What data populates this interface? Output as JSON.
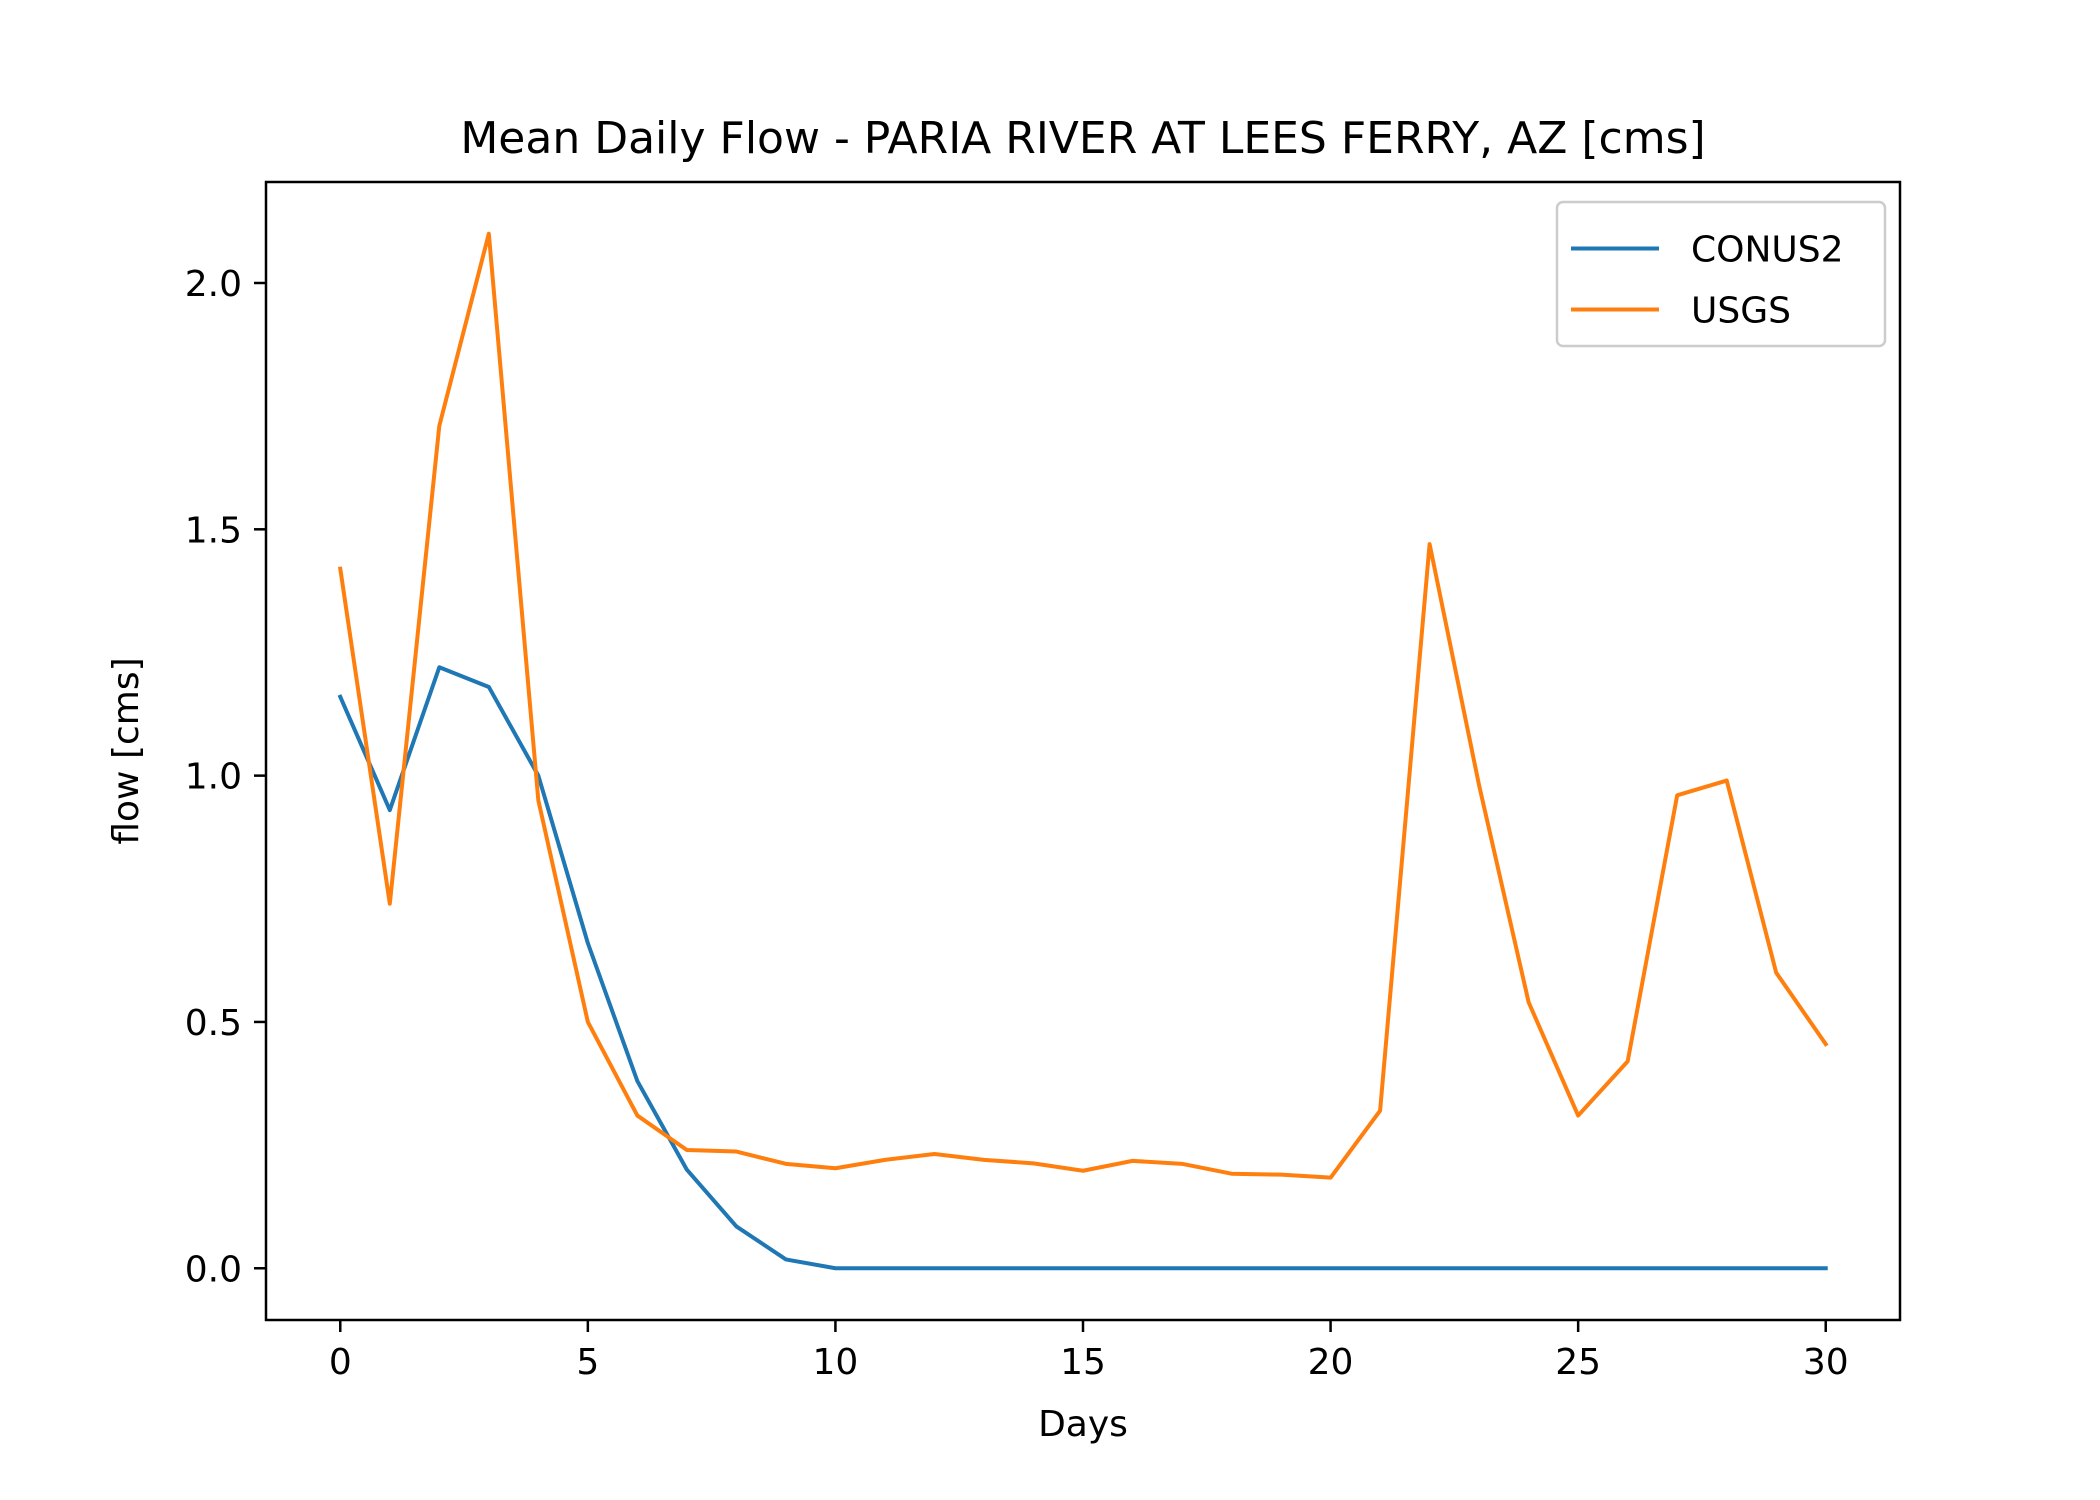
{
  "chart_data": {
    "type": "line",
    "title": "Mean Daily Flow - PARIA RIVER AT LEES FERRY, AZ [cms]",
    "xlabel": "Days",
    "ylabel": "flow [cms]",
    "xlim": [
      -1.5,
      31.5
    ],
    "ylim": [
      -0.105,
      2.205
    ],
    "xticks": [
      0,
      5,
      10,
      15,
      20,
      25,
      30
    ],
    "xtick_labels": [
      "0",
      "5",
      "10",
      "15",
      "20",
      "25",
      "30"
    ],
    "yticks": [
      0.0,
      0.5,
      1.0,
      1.5,
      2.0
    ],
    "ytick_labels": [
      "0.0",
      "0.5",
      "1.0",
      "1.5",
      "2.0"
    ],
    "grid": false,
    "legend_position": "top-right",
    "x": [
      0,
      1,
      2,
      3,
      4,
      5,
      6,
      7,
      8,
      9,
      10,
      11,
      12,
      13,
      14,
      15,
      16,
      17,
      18,
      19,
      20,
      21,
      22,
      23,
      24,
      25,
      26,
      27,
      28,
      29,
      30
    ],
    "series": [
      {
        "name": "CONUS2",
        "color": "#1f77b4",
        "values": [
          1.16,
          0.93,
          1.22,
          1.18,
          1.0,
          0.66,
          0.38,
          0.2,
          0.085,
          0.018,
          0.0,
          0.0,
          0.0,
          0.0,
          0.0,
          0.0,
          0.0,
          0.0,
          0.0,
          0.0,
          0.0,
          0.0,
          0.0,
          0.0,
          0.0,
          0.0,
          0.0,
          0.0,
          0.0,
          0.0,
          0.0
        ]
      },
      {
        "name": "USGS",
        "color": "#ff7f0e",
        "values": [
          1.42,
          0.74,
          1.71,
          2.1,
          0.95,
          0.5,
          0.31,
          0.24,
          0.237,
          0.212,
          0.203,
          0.22,
          0.232,
          0.22,
          0.213,
          0.198,
          0.218,
          0.212,
          0.192,
          0.19,
          0.184,
          0.32,
          1.47,
          0.98,
          0.54,
          0.31,
          0.42,
          0.96,
          0.99,
          0.6,
          0.455
        ]
      }
    ]
  }
}
